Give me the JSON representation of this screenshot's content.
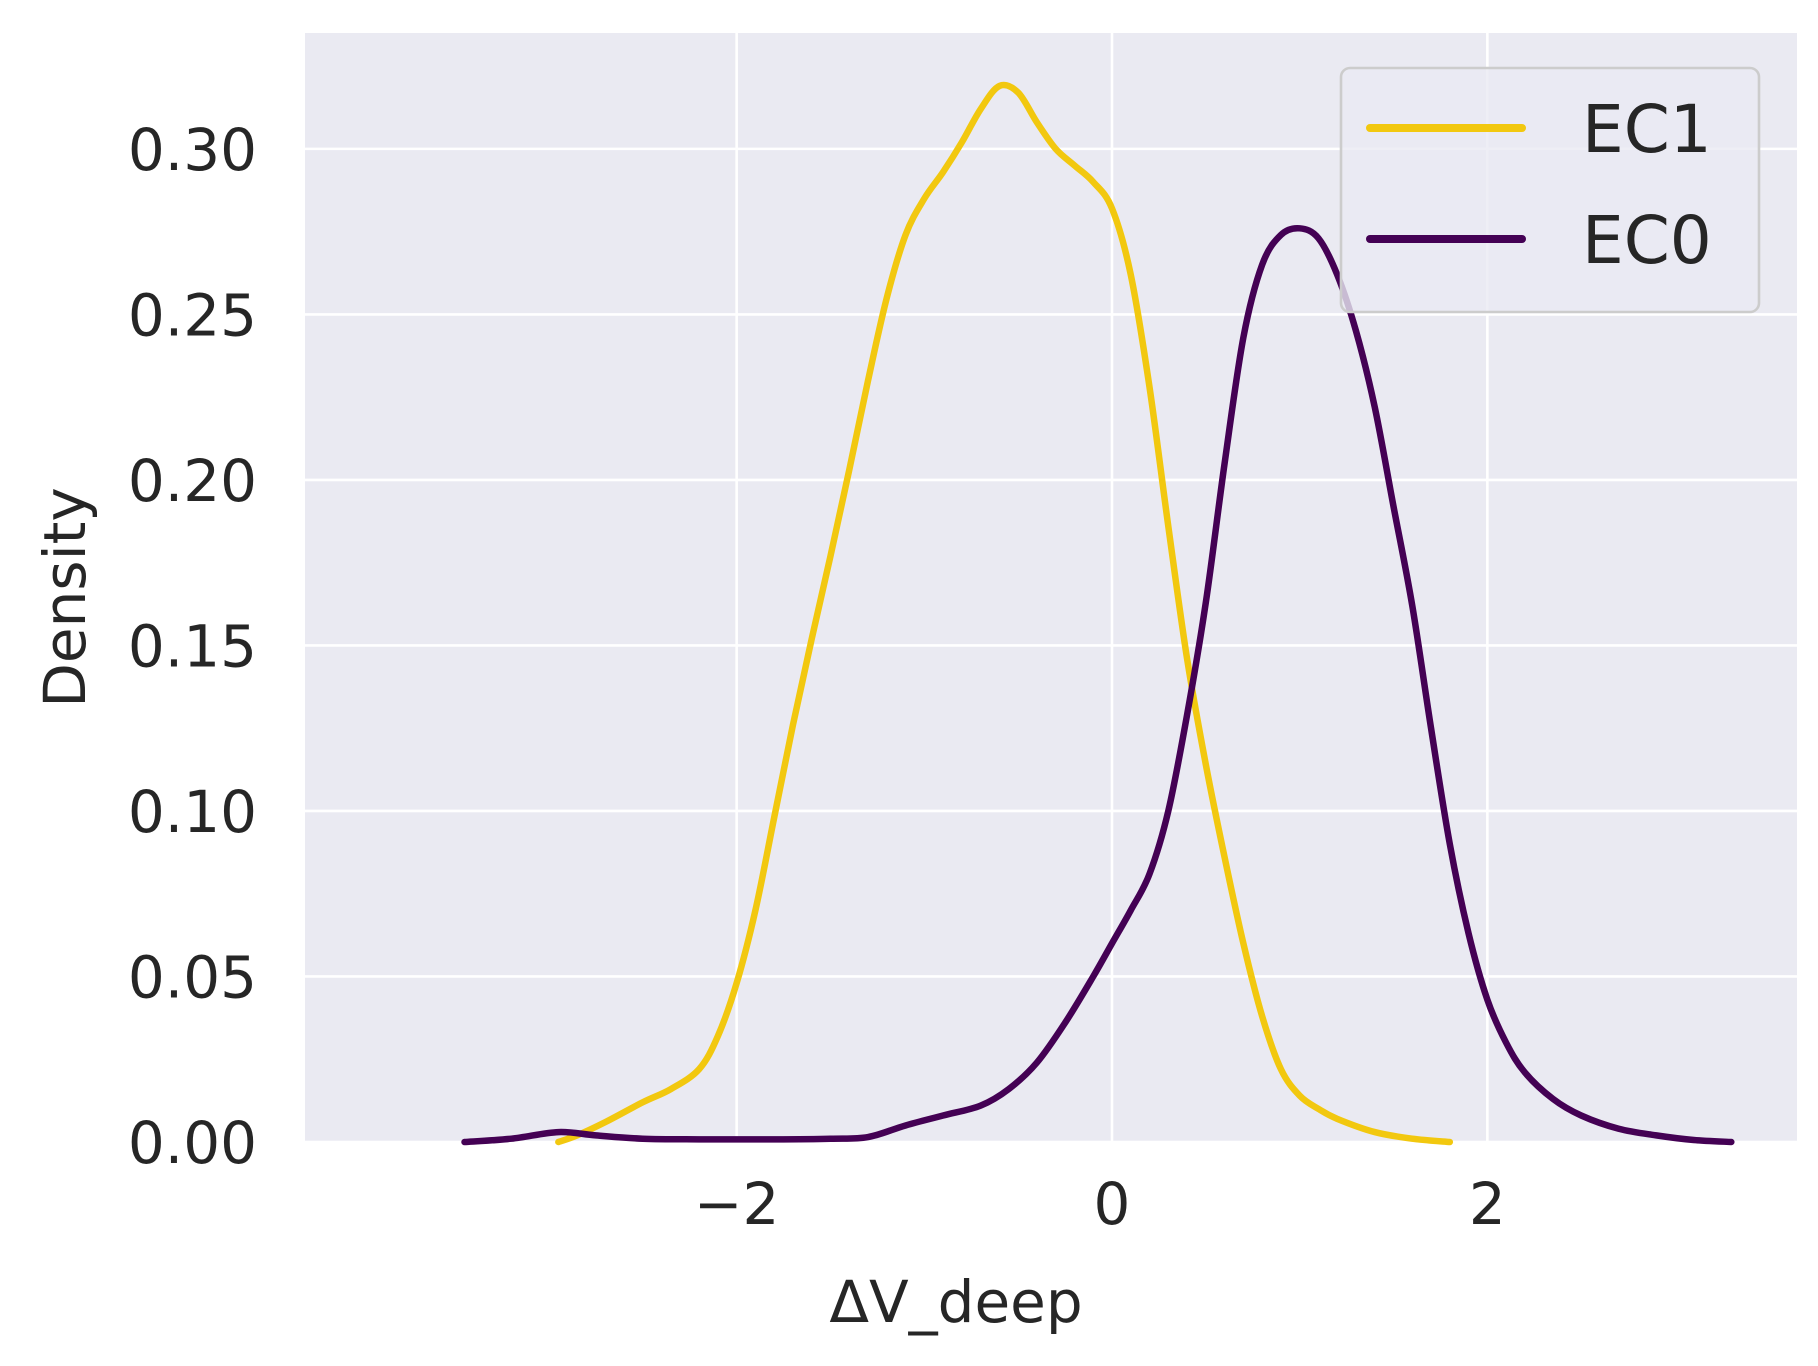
{
  "chart_data": {
    "type": "line",
    "title": "",
    "xlabel": "ΔV_deep",
    "ylabel": "Density",
    "xlim": [
      -4.3,
      3.65
    ],
    "ylim": [
      0.0,
      0.335
    ],
    "x_ticks": [
      -2,
      0,
      2
    ],
    "x_tick_labels": [
      "−2",
      "0",
      "2"
    ],
    "y_ticks": [
      0.0,
      0.05,
      0.1,
      0.15,
      0.2,
      0.25,
      0.3
    ],
    "y_tick_labels": [
      "0.00",
      "0.05",
      "0.10",
      "0.15",
      "0.20",
      "0.25",
      "0.30"
    ],
    "grid": true,
    "legend_position": "top-right",
    "background": "#eaeaf2",
    "series": [
      {
        "name": "EC1",
        "color": "#f2c80f",
        "points": [
          [
            -2.95,
            0.0
          ],
          [
            -2.85,
            0.002
          ],
          [
            -2.7,
            0.006
          ],
          [
            -2.5,
            0.012
          ],
          [
            -2.35,
            0.016
          ],
          [
            -2.2,
            0.022
          ],
          [
            -2.1,
            0.032
          ],
          [
            -2.0,
            0.048
          ],
          [
            -1.9,
            0.07
          ],
          [
            -1.8,
            0.098
          ],
          [
            -1.7,
            0.126
          ],
          [
            -1.6,
            0.152
          ],
          [
            -1.5,
            0.177
          ],
          [
            -1.4,
            0.203
          ],
          [
            -1.3,
            0.23
          ],
          [
            -1.2,
            0.255
          ],
          [
            -1.1,
            0.274
          ],
          [
            -1.0,
            0.285
          ],
          [
            -0.9,
            0.293
          ],
          [
            -0.8,
            0.302
          ],
          [
            -0.7,
            0.312
          ],
          [
            -0.6,
            0.319
          ],
          [
            -0.5,
            0.317
          ],
          [
            -0.4,
            0.308
          ],
          [
            -0.3,
            0.3
          ],
          [
            -0.2,
            0.295
          ],
          [
            -0.1,
            0.29
          ],
          [
            0.0,
            0.282
          ],
          [
            0.1,
            0.262
          ],
          [
            0.2,
            0.228
          ],
          [
            0.3,
            0.186
          ],
          [
            0.4,
            0.146
          ],
          [
            0.5,
            0.114
          ],
          [
            0.6,
            0.086
          ],
          [
            0.7,
            0.06
          ],
          [
            0.8,
            0.038
          ],
          [
            0.9,
            0.022
          ],
          [
            1.0,
            0.014
          ],
          [
            1.1,
            0.01
          ],
          [
            1.2,
            0.007
          ],
          [
            1.4,
            0.003
          ],
          [
            1.6,
            0.001
          ],
          [
            1.8,
            0.0
          ]
        ]
      },
      {
        "name": "EC0",
        "color": "#440154",
        "points": [
          [
            -3.45,
            0.0
          ],
          [
            -3.2,
            0.001
          ],
          [
            -2.95,
            0.003
          ],
          [
            -2.75,
            0.002
          ],
          [
            -2.5,
            0.001
          ],
          [
            -2.2,
            0.0008
          ],
          [
            -1.8,
            0.0008
          ],
          [
            -1.5,
            0.001
          ],
          [
            -1.3,
            0.0015
          ],
          [
            -1.1,
            0.005
          ],
          [
            -0.9,
            0.008
          ],
          [
            -0.7,
            0.011
          ],
          [
            -0.55,
            0.016
          ],
          [
            -0.4,
            0.024
          ],
          [
            -0.25,
            0.036
          ],
          [
            -0.1,
            0.05
          ],
          [
            0.0,
            0.06
          ],
          [
            0.1,
            0.07
          ],
          [
            0.2,
            0.081
          ],
          [
            0.3,
            0.1
          ],
          [
            0.4,
            0.129
          ],
          [
            0.5,
            0.163
          ],
          [
            0.6,
            0.205
          ],
          [
            0.7,
            0.243
          ],
          [
            0.8,
            0.265
          ],
          [
            0.9,
            0.274
          ],
          [
            1.0,
            0.276
          ],
          [
            1.1,
            0.273
          ],
          [
            1.2,
            0.262
          ],
          [
            1.3,
            0.245
          ],
          [
            1.4,
            0.222
          ],
          [
            1.5,
            0.192
          ],
          [
            1.6,
            0.162
          ],
          [
            1.7,
            0.125
          ],
          [
            1.8,
            0.09
          ],
          [
            1.9,
            0.063
          ],
          [
            2.0,
            0.043
          ],
          [
            2.1,
            0.03
          ],
          [
            2.2,
            0.021
          ],
          [
            2.35,
            0.013
          ],
          [
            2.5,
            0.008
          ],
          [
            2.7,
            0.004
          ],
          [
            2.9,
            0.002
          ],
          [
            3.1,
            0.0006
          ],
          [
            3.3,
            0.0
          ]
        ]
      }
    ]
  }
}
